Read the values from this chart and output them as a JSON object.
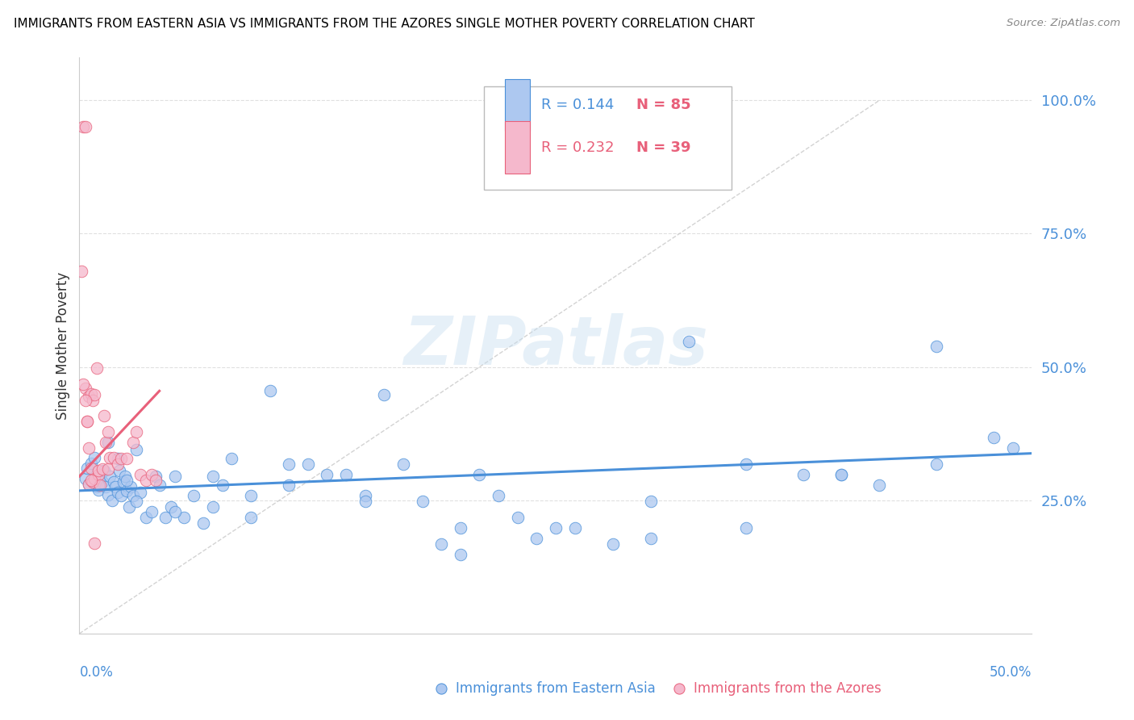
{
  "title": "IMMIGRANTS FROM EASTERN ASIA VS IMMIGRANTS FROM THE AZORES SINGLE MOTHER POVERTY CORRELATION CHART",
  "source": "Source: ZipAtlas.com",
  "ylabel": "Single Mother Poverty",
  "right_yticks": [
    "100.0%",
    "75.0%",
    "50.0%",
    "25.0%"
  ],
  "right_ytick_vals": [
    1.0,
    0.75,
    0.5,
    0.25
  ],
  "xlim": [
    0.0,
    0.5
  ],
  "ylim": [
    0.0,
    1.08
  ],
  "blue_color": "#adc8f0",
  "blue_line_color": "#4a90d9",
  "blue_edge_color": "#4a90d9",
  "pink_color": "#f5b8cc",
  "pink_line_color": "#e8607a",
  "pink_edge_color": "#e8607a",
  "diag_line_color": "#c8c8c8",
  "grid_color": "#e0e0e0",
  "watermark": "ZIPatlas",
  "blue_scatter_x": [
    0.003,
    0.004,
    0.005,
    0.006,
    0.007,
    0.008,
    0.009,
    0.01,
    0.011,
    0.012,
    0.013,
    0.014,
    0.015,
    0.016,
    0.017,
    0.018,
    0.019,
    0.02,
    0.021,
    0.022,
    0.023,
    0.024,
    0.025,
    0.026,
    0.027,
    0.028,
    0.03,
    0.032,
    0.035,
    0.038,
    0.04,
    0.042,
    0.045,
    0.048,
    0.05,
    0.055,
    0.06,
    0.065,
    0.07,
    0.075,
    0.08,
    0.09,
    0.1,
    0.11,
    0.12,
    0.13,
    0.14,
    0.15,
    0.16,
    0.17,
    0.18,
    0.19,
    0.2,
    0.21,
    0.22,
    0.23,
    0.24,
    0.26,
    0.28,
    0.3,
    0.32,
    0.35,
    0.38,
    0.4,
    0.42,
    0.45,
    0.48,
    0.49,
    0.01,
    0.015,
    0.02,
    0.025,
    0.03,
    0.05,
    0.07,
    0.09,
    0.11,
    0.15,
    0.2,
    0.25,
    0.3,
    0.35,
    0.4,
    0.45
  ],
  "blue_scatter_y": [
    0.29,
    0.31,
    0.28,
    0.32,
    0.285,
    0.33,
    0.275,
    0.27,
    0.295,
    0.285,
    0.305,
    0.275,
    0.26,
    0.295,
    0.25,
    0.285,
    0.275,
    0.265,
    0.305,
    0.258,
    0.285,
    0.295,
    0.268,
    0.238,
    0.275,
    0.258,
    0.345,
    0.265,
    0.218,
    0.228,
    0.295,
    0.278,
    0.218,
    0.238,
    0.295,
    0.218,
    0.258,
    0.208,
    0.295,
    0.278,
    0.328,
    0.218,
    0.455,
    0.318,
    0.318,
    0.298,
    0.298,
    0.258,
    0.448,
    0.318,
    0.248,
    0.168,
    0.148,
    0.298,
    0.258,
    0.218,
    0.178,
    0.198,
    0.168,
    0.178,
    0.548,
    0.318,
    0.298,
    0.298,
    0.278,
    0.538,
    0.368,
    0.348,
    0.278,
    0.358,
    0.328,
    0.288,
    0.248,
    0.228,
    0.238,
    0.258,
    0.278,
    0.248,
    0.198,
    0.198,
    0.248,
    0.198,
    0.298,
    0.318
  ],
  "pink_scatter_x": [
    0.001,
    0.002,
    0.003,
    0.003,
    0.004,
    0.005,
    0.005,
    0.006,
    0.006,
    0.007,
    0.007,
    0.008,
    0.008,
    0.009,
    0.01,
    0.01,
    0.011,
    0.012,
    0.013,
    0.014,
    0.015,
    0.015,
    0.016,
    0.018,
    0.02,
    0.022,
    0.025,
    0.028,
    0.03,
    0.032,
    0.035,
    0.038,
    0.04,
    0.002,
    0.003,
    0.004,
    0.005,
    0.006,
    0.008
  ],
  "pink_scatter_y": [
    0.68,
    0.95,
    0.95,
    0.46,
    0.398,
    0.28,
    0.445,
    0.31,
    0.45,
    0.438,
    0.285,
    0.448,
    0.29,
    0.498,
    0.298,
    0.305,
    0.278,
    0.308,
    0.408,
    0.358,
    0.378,
    0.308,
    0.33,
    0.33,
    0.318,
    0.328,
    0.328,
    0.358,
    0.378,
    0.298,
    0.288,
    0.298,
    0.288,
    0.468,
    0.438,
    0.398,
    0.348,
    0.288,
    0.17
  ],
  "blue_trendline_x": [
    0.0,
    0.5
  ],
  "blue_trendline_y": [
    0.268,
    0.338
  ],
  "pink_trendline_x": [
    0.0,
    0.042
  ],
  "pink_trendline_y": [
    0.295,
    0.455
  ],
  "diag_line_x": [
    0.0,
    0.42
  ],
  "diag_line_y": [
    0.0,
    1.0
  ]
}
